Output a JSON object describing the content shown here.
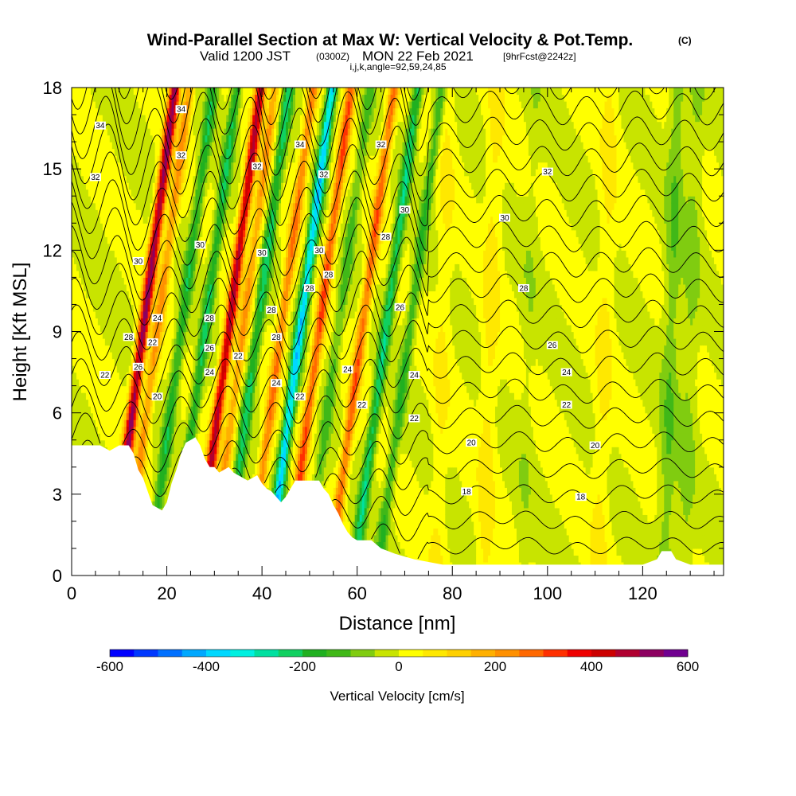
{
  "title": {
    "main": "Wind-Parallel Section at Max W: Vertical Velocity & Pot.Temp.",
    "main_suffix": "(C)",
    "valid_prefix": "Valid 1200 JST",
    "valid_zulu": "(0300Z)",
    "valid_date": "MON 22 Feb 2021",
    "valid_fcst": "[9hrFcst@2242z]",
    "indices": "i,j,k,angle=92,59,24,85"
  },
  "chart_data": {
    "type": "heatmap",
    "title": "Wind-Parallel Section at Max W: Vertical Velocity & Pot.Temp.",
    "xlabel": "Distance [nm]",
    "ylabel": "Height [Kft MSL]",
    "xlim": [
      0,
      137
    ],
    "ylim": [
      0,
      18
    ],
    "x_ticks": [
      0,
      20,
      40,
      60,
      80,
      100,
      120
    ],
    "y_ticks": [
      0,
      3,
      6,
      9,
      12,
      15,
      18
    ],
    "grid": false,
    "colorbar": {
      "title": "Vertical Velocity [cm/s]",
      "range": [
        -600,
        600
      ],
      "tick_values": [
        -600,
        -400,
        -200,
        0,
        200,
        400,
        600
      ],
      "colors": [
        "#0000ff",
        "#0038ff",
        "#0070ff",
        "#00a8ff",
        "#00d8ff",
        "#00f0e0",
        "#00e0a0",
        "#10d060",
        "#20b020",
        "#40b818",
        "#80cc10",
        "#c8e400",
        "#ffff00",
        "#ffe800",
        "#ffd000",
        "#ffb000",
        "#ff9000",
        "#ff6800",
        "#ff3000",
        "#ee0000",
        "#cc0000",
        "#b00030",
        "#8c0060",
        "#700090"
      ]
    },
    "terrain": [
      [
        0,
        4.8
      ],
      [
        6,
        4.8
      ],
      [
        8,
        4.6
      ],
      [
        10,
        4.8
      ],
      [
        12,
        4.8
      ],
      [
        13,
        4.5
      ],
      [
        14,
        3.9
      ],
      [
        15,
        3.6
      ],
      [
        16,
        3.1
      ],
      [
        17,
        2.6
      ],
      [
        18,
        2.5
      ],
      [
        19,
        2.4
      ],
      [
        20,
        2.7
      ],
      [
        21,
        3.4
      ],
      [
        22,
        3.9
      ],
      [
        23,
        4.5
      ],
      [
        24,
        4.9
      ],
      [
        25,
        5.0
      ],
      [
        26,
        5.1
      ],
      [
        27,
        4.8
      ],
      [
        28,
        4.3
      ],
      [
        29,
        4.0
      ],
      [
        30,
        4.0
      ],
      [
        31,
        3.8
      ],
      [
        32,
        3.9
      ],
      [
        33,
        4.0
      ],
      [
        34,
        3.8
      ],
      [
        35,
        3.7
      ],
      [
        36,
        3.6
      ],
      [
        37,
        3.5
      ],
      [
        38,
        3.6
      ],
      [
        39,
        3.7
      ],
      [
        40,
        3.4
      ],
      [
        41,
        3.2
      ],
      [
        42,
        3.1
      ],
      [
        43,
        2.9
      ],
      [
        44,
        2.7
      ],
      [
        45,
        2.9
      ],
      [
        46,
        3.2
      ],
      [
        47,
        3.5
      ],
      [
        48,
        3.5
      ],
      [
        52,
        3.5
      ],
      [
        53,
        3.2
      ],
      [
        54,
        3.0
      ],
      [
        55,
        2.6
      ],
      [
        56,
        2.3
      ],
      [
        57,
        1.9
      ],
      [
        58,
        1.6
      ],
      [
        59,
        1.4
      ],
      [
        60,
        1.3
      ],
      [
        63,
        1.3
      ],
      [
        65,
        1.0
      ],
      [
        68,
        0.8
      ],
      [
        72,
        0.6
      ],
      [
        78,
        0.4
      ],
      [
        85,
        0.4
      ],
      [
        120,
        0.4
      ],
      [
        123,
        0.6
      ],
      [
        124,
        0.9
      ],
      [
        126,
        0.9
      ],
      [
        127,
        0.6
      ],
      [
        130,
        0.4
      ],
      [
        137,
        0.4
      ]
    ],
    "w_features": [
      {
        "x": 15,
        "w": 520
      },
      {
        "x": 18,
        "w": 220
      },
      {
        "x": 23,
        "w": -180
      },
      {
        "x": 28,
        "w": -200
      },
      {
        "x": 33,
        "w": 460
      },
      {
        "x": 36,
        "w": 200
      },
      {
        "x": 39,
        "w": -220
      },
      {
        "x": 44,
        "w": 250
      },
      {
        "x": 48,
        "w": -380
      },
      {
        "x": 52,
        "w": 300
      },
      {
        "x": 56,
        "w": -120
      },
      {
        "x": 61,
        "w": 280
      },
      {
        "x": 66,
        "w": -230
      },
      {
        "x": 71,
        "w": -150
      },
      {
        "x": 78,
        "w": 50
      },
      {
        "x": 88,
        "w": 70
      },
      {
        "x": 96,
        "w": -30
      },
      {
        "x": 112,
        "w": 60
      },
      {
        "x": 126,
        "w": -90
      },
      {
        "x": 130,
        "w": -60
      }
    ],
    "theta_levels": [
      16,
      17,
      18,
      19,
      20,
      21,
      22,
      23,
      24,
      25,
      26,
      27,
      28,
      29,
      30,
      31,
      32,
      33,
      34,
      35
    ],
    "contour_labels": [
      {
        "x": 6,
        "y": 16.6,
        "text": "34"
      },
      {
        "x": 23,
        "y": 17.2,
        "text": "34"
      },
      {
        "x": 48,
        "y": 15.9,
        "text": "34"
      },
      {
        "x": 5,
        "y": 14.7,
        "text": "32"
      },
      {
        "x": 23,
        "y": 15.5,
        "text": "32"
      },
      {
        "x": 39,
        "y": 15.1,
        "text": "32"
      },
      {
        "x": 53,
        "y": 14.8,
        "text": "32"
      },
      {
        "x": 65,
        "y": 15.9,
        "text": "32"
      },
      {
        "x": 100,
        "y": 14.9,
        "text": "32"
      },
      {
        "x": 70,
        "y": 13.5,
        "text": "30"
      },
      {
        "x": 91,
        "y": 13.2,
        "text": "30"
      },
      {
        "x": 14,
        "y": 11.6,
        "text": "30"
      },
      {
        "x": 27,
        "y": 12.2,
        "text": "30"
      },
      {
        "x": 40,
        "y": 11.9,
        "text": "30"
      },
      {
        "x": 52,
        "y": 12.0,
        "text": "30"
      },
      {
        "x": 66,
        "y": 12.5,
        "text": "28"
      },
      {
        "x": 54,
        "y": 11.1,
        "text": "28"
      },
      {
        "x": 50,
        "y": 10.6,
        "text": "28"
      },
      {
        "x": 95,
        "y": 10.6,
        "text": "28"
      },
      {
        "x": 18,
        "y": 9.5,
        "text": "24"
      },
      {
        "x": 29,
        "y": 9.5,
        "text": "28"
      },
      {
        "x": 42,
        "y": 9.8,
        "text": "28"
      },
      {
        "x": 69,
        "y": 9.9,
        "text": "26"
      },
      {
        "x": 12,
        "y": 8.8,
        "text": "28"
      },
      {
        "x": 17,
        "y": 8.6,
        "text": "22"
      },
      {
        "x": 29,
        "y": 8.4,
        "text": "26"
      },
      {
        "x": 35,
        "y": 8.1,
        "text": "22"
      },
      {
        "x": 43,
        "y": 8.8,
        "text": "28"
      },
      {
        "x": 101,
        "y": 8.5,
        "text": "26"
      },
      {
        "x": 14,
        "y": 7.7,
        "text": "26"
      },
      {
        "x": 29,
        "y": 7.5,
        "text": "24"
      },
      {
        "x": 58,
        "y": 7.6,
        "text": "24"
      },
      {
        "x": 72,
        "y": 7.4,
        "text": "24"
      },
      {
        "x": 104,
        "y": 7.5,
        "text": "24"
      },
      {
        "x": 7,
        "y": 7.4,
        "text": "22"
      },
      {
        "x": 18,
        "y": 6.6,
        "text": "20"
      },
      {
        "x": 43,
        "y": 7.1,
        "text": "24"
      },
      {
        "x": 48,
        "y": 6.6,
        "text": "22"
      },
      {
        "x": 61,
        "y": 6.3,
        "text": "22"
      },
      {
        "x": 72,
        "y": 5.8,
        "text": "22"
      },
      {
        "x": 104,
        "y": 6.3,
        "text": "22"
      },
      {
        "x": 84,
        "y": 4.9,
        "text": "20"
      },
      {
        "x": 110,
        "y": 4.8,
        "text": "20"
      },
      {
        "x": 83,
        "y": 3.1,
        "text": "18"
      },
      {
        "x": 107,
        "y": 2.9,
        "text": "18"
      }
    ]
  }
}
